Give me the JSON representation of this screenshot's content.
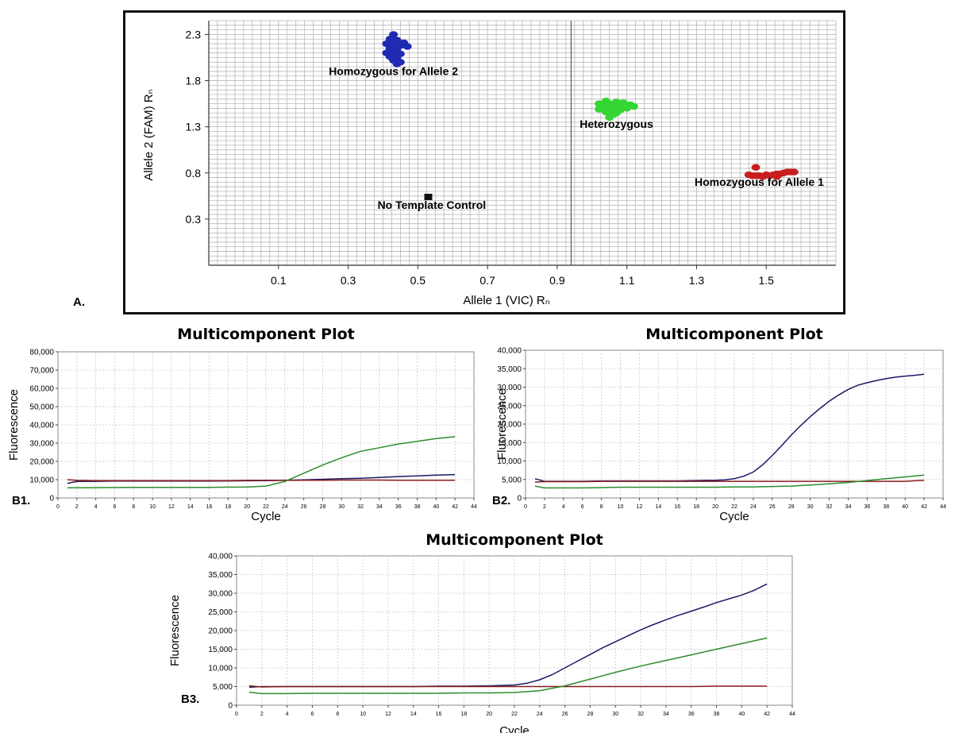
{
  "chart_data": [
    {
      "id": "A",
      "type": "scatter",
      "panel_label": "A.",
      "xlabel": "Allele 1 (VIC) Rₙ",
      "ylabel": "Allele 2 (FAM) Rₙ",
      "xlim": [
        -0.1,
        1.7
      ],
      "ylim": [
        -0.2,
        2.45
      ],
      "xticks": [
        0.1,
        0.3,
        0.5,
        0.7,
        0.9,
        1.1,
        1.3,
        1.5
      ],
      "xtick_labels": [
        "0.1",
        "0.3",
        "0.5",
        "0.7",
        "0.9",
        "1.1",
        "1.3",
        "1.5"
      ],
      "yticks": [
        0.3,
        0.8,
        1.3,
        1.8,
        2.3
      ],
      "ytick_labels": [
        "0.3",
        "0.8",
        "1.3",
        "1.8",
        "2.3"
      ],
      "grid": true,
      "clusters": [
        {
          "label": "Homozygous for Allele 2",
          "color": "#1f2bb3",
          "label_at": [
            0.43,
            1.86
          ],
          "points": [
            [
              0.43,
              2.3
            ],
            [
              0.42,
              2.25
            ],
            [
              0.44,
              2.24
            ],
            [
              0.41,
              2.2
            ],
            [
              0.43,
              2.2
            ],
            [
              0.45,
              2.18
            ],
            [
              0.47,
              2.17
            ],
            [
              0.42,
              2.15
            ],
            [
              0.44,
              2.14
            ],
            [
              0.43,
              2.11
            ],
            [
              0.41,
              2.1
            ],
            [
              0.45,
              2.09
            ],
            [
              0.42,
              2.06
            ],
            [
              0.44,
              2.05
            ],
            [
              0.43,
              2.02
            ],
            [
              0.45,
              2.0
            ],
            [
              0.44,
              1.98
            ],
            [
              0.42,
              2.13
            ],
            [
              0.46,
              2.21
            ],
            [
              0.43,
              2.08
            ]
          ]
        },
        {
          "label": "Heterozygous",
          "color": "#33d633",
          "label_at": [
            1.07,
            1.29
          ],
          "points": [
            [
              1.04,
              1.58
            ],
            [
              1.07,
              1.57
            ],
            [
              1.09,
              1.56
            ],
            [
              1.02,
              1.55
            ],
            [
              1.05,
              1.55
            ],
            [
              1.11,
              1.54
            ],
            [
              1.04,
              1.53
            ],
            [
              1.07,
              1.53
            ],
            [
              1.09,
              1.52
            ],
            [
              1.03,
              1.51
            ],
            [
              1.06,
              1.5
            ],
            [
              1.1,
              1.5
            ],
            [
              1.05,
              1.48
            ],
            [
              1.08,
              1.48
            ],
            [
              1.04,
              1.46
            ],
            [
              1.07,
              1.45
            ],
            [
              1.06,
              1.43
            ],
            [
              1.05,
              1.4
            ],
            [
              1.12,
              1.52
            ],
            [
              1.02,
              1.49
            ]
          ]
        },
        {
          "label": "Homozygous for Allele 1",
          "color": "#c81e1e",
          "label_at": [
            1.48,
            0.66
          ],
          "points": [
            [
              1.47,
              0.86
            ],
            [
              1.45,
              0.78
            ],
            [
              1.47,
              0.77
            ],
            [
              1.48,
              0.77
            ],
            [
              1.5,
              0.78
            ],
            [
              1.51,
              0.77
            ],
            [
              1.52,
              0.78
            ],
            [
              1.53,
              0.79
            ],
            [
              1.54,
              0.79
            ],
            [
              1.55,
              0.8
            ],
            [
              1.56,
              0.81
            ],
            [
              1.57,
              0.81
            ],
            [
              1.58,
              0.81
            ],
            [
              1.49,
              0.76
            ],
            [
              1.46,
              0.77
            ],
            [
              1.53,
              0.76
            ]
          ]
        },
        {
          "label": "No Template Control",
          "color": "#111111",
          "label_at": [
            0.54,
            0.41
          ],
          "points": [
            [
              0.53,
              0.54
            ]
          ]
        }
      ]
    },
    {
      "id": "B1",
      "type": "line",
      "title": "Multicomponent Plot",
      "panel_label": "B1.",
      "xlabel": "Cycle",
      "ylabel": "Fluorescence",
      "xlim": [
        0,
        44
      ],
      "ylim": [
        0,
        80000
      ],
      "xticks": [
        0,
        2,
        4,
        6,
        8,
        10,
        12,
        14,
        16,
        18,
        20,
        22,
        24,
        26,
        28,
        30,
        32,
        34,
        36,
        38,
        40,
        42,
        44
      ],
      "yticks": [
        0,
        10000,
        20000,
        30000,
        40000,
        50000,
        60000,
        70000,
        80000
      ],
      "ytick_labels": [
        "0",
        "10,000",
        "20,000",
        "30,000",
        "40,000",
        "50,000",
        "60,000",
        "70,000",
        "80,000"
      ],
      "grid": true,
      "series": [
        {
          "color": "#1a1a66",
          "x": [
            1,
            2,
            4,
            6,
            8,
            10,
            12,
            14,
            16,
            18,
            20,
            22,
            24,
            26,
            28,
            30,
            32,
            34,
            36,
            38,
            40,
            42
          ],
          "y": [
            8000,
            9000,
            9100,
            9200,
            9200,
            9200,
            9200,
            9200,
            9200,
            9300,
            9400,
            9500,
            9700,
            9900,
            10200,
            10500,
            10800,
            11200,
            11700,
            12100,
            12500,
            12800
          ]
        },
        {
          "color": "#8b1a1a",
          "x": [
            1,
            2,
            4,
            6,
            8,
            10,
            12,
            14,
            16,
            18,
            20,
            22,
            24,
            26,
            28,
            30,
            32,
            34,
            36,
            38,
            40,
            42
          ],
          "y": [
            10000,
            9600,
            9500,
            9500,
            9500,
            9500,
            9500,
            9500,
            9500,
            9500,
            9600,
            9600,
            9600,
            9700,
            9700,
            9800,
            9800,
            9800,
            9700,
            9700,
            9700,
            9700
          ]
        },
        {
          "color": "#2e8b2e",
          "x": [
            1,
            2,
            4,
            6,
            8,
            10,
            12,
            14,
            16,
            18,
            20,
            22,
            24,
            26,
            28,
            30,
            32,
            34,
            36,
            38,
            40,
            42
          ],
          "y": [
            5500,
            5600,
            5600,
            5700,
            5800,
            5800,
            5800,
            5800,
            5800,
            5900,
            6000,
            6500,
            9000,
            13500,
            18000,
            22000,
            25500,
            27500,
            29500,
            31000,
            32500,
            33500
          ]
        }
      ]
    },
    {
      "id": "B2",
      "type": "line",
      "title": "Multicomponent Plot",
      "panel_label": "B2.",
      "xlabel": "Cycle",
      "ylabel": "Fluorescence",
      "xlim": [
        0,
        44
      ],
      "ylim": [
        0,
        40000
      ],
      "xticks": [
        0,
        2,
        4,
        6,
        8,
        10,
        12,
        14,
        16,
        18,
        20,
        22,
        24,
        26,
        28,
        30,
        32,
        34,
        36,
        38,
        40,
        42,
        44
      ],
      "yticks": [
        0,
        5000,
        10000,
        15000,
        20000,
        25000,
        30000,
        35000,
        40000
      ],
      "ytick_labels": [
        "0",
        "5,000",
        "10,000",
        "15,000",
        "20,000",
        "25,000",
        "30,000",
        "35,000",
        "40,000"
      ],
      "grid": true,
      "series": [
        {
          "color": "#1a1a66",
          "x": [
            1,
            2,
            4,
            6,
            8,
            10,
            12,
            14,
            16,
            18,
            20,
            21,
            22,
            23,
            24,
            25,
            26,
            27,
            28,
            29,
            30,
            31,
            32,
            33,
            34,
            35,
            36,
            37,
            38,
            39,
            40,
            41,
            42
          ],
          "y": [
            5200,
            4500,
            4500,
            4500,
            4600,
            4600,
            4600,
            4600,
            4600,
            4700,
            4800,
            4900,
            5200,
            5900,
            7000,
            9000,
            11500,
            14200,
            17000,
            19600,
            22000,
            24200,
            26200,
            27900,
            29400,
            30500,
            31200,
            31800,
            32300,
            32700,
            33000,
            33200,
            33500
          ]
        },
        {
          "color": "#8b1a1a",
          "x": [
            1,
            2,
            4,
            6,
            8,
            10,
            12,
            14,
            16,
            18,
            20,
            22,
            24,
            26,
            28,
            30,
            32,
            34,
            36,
            38,
            40,
            42
          ],
          "y": [
            4300,
            4400,
            4400,
            4400,
            4500,
            4500,
            4500,
            4500,
            4500,
            4500,
            4500,
            4500,
            4500,
            4500,
            4500,
            4500,
            4500,
            4500,
            4500,
            4500,
            4500,
            4800
          ]
        },
        {
          "color": "#2e8b2e",
          "x": [
            1,
            2,
            4,
            6,
            8,
            10,
            12,
            14,
            16,
            18,
            20,
            22,
            24,
            26,
            28,
            30,
            32,
            34,
            36,
            38,
            40,
            42
          ],
          "y": [
            3200,
            2700,
            2700,
            2700,
            2800,
            2900,
            2900,
            2900,
            2900,
            2900,
            2900,
            3000,
            3000,
            3100,
            3200,
            3500,
            3800,
            4200,
            4700,
            5200,
            5700,
            6200
          ]
        }
      ]
    },
    {
      "id": "B3",
      "type": "line",
      "title": "Multicomponent Plot",
      "panel_label": "B3.",
      "xlabel": "Cycle",
      "ylabel": "Fluorescence",
      "xlim": [
        0,
        44
      ],
      "ylim": [
        0,
        40000
      ],
      "xticks": [
        0,
        2,
        4,
        6,
        8,
        10,
        12,
        14,
        16,
        18,
        20,
        22,
        24,
        26,
        28,
        30,
        32,
        34,
        36,
        38,
        40,
        42,
        44
      ],
      "yticks": [
        0,
        5000,
        10000,
        15000,
        20000,
        25000,
        30000,
        35000,
        40000
      ],
      "ytick_labels": [
        "0",
        "5,000",
        "10,000",
        "15,000",
        "20,000",
        "25,000",
        "30,000",
        "35,000",
        "40,000"
      ],
      "grid": true,
      "series": [
        {
          "color": "#1a1a66",
          "x": [
            1,
            2,
            4,
            6,
            8,
            10,
            12,
            14,
            16,
            18,
            20,
            22,
            23,
            24,
            25,
            26,
            27,
            28,
            29,
            30,
            31,
            32,
            33,
            34,
            35,
            36,
            37,
            38,
            39,
            40,
            41,
            42
          ],
          "y": [
            4800,
            5000,
            5000,
            5000,
            5000,
            5000,
            5000,
            5000,
            5100,
            5100,
            5200,
            5400,
            5900,
            6800,
            8200,
            10000,
            11800,
            13600,
            15400,
            17000,
            18600,
            20200,
            21600,
            22900,
            24100,
            25200,
            26300,
            27500,
            28500,
            29500,
            30800,
            32500
          ]
        },
        {
          "color": "#8b1a1a",
          "x": [
            1,
            2,
            4,
            6,
            8,
            10,
            12,
            14,
            16,
            18,
            20,
            22,
            24,
            26,
            28,
            30,
            32,
            34,
            36,
            38,
            40,
            42
          ],
          "y": [
            5200,
            4900,
            5000,
            5000,
            5000,
            5000,
            5000,
            5000,
            5000,
            5000,
            5000,
            5000,
            5000,
            5000,
            5000,
            5000,
            5000,
            5000,
            5000,
            5100,
            5100,
            5100
          ]
        },
        {
          "color": "#2e8b2e",
          "x": [
            1,
            2,
            4,
            6,
            8,
            10,
            12,
            14,
            16,
            18,
            20,
            22,
            24,
            26,
            28,
            30,
            32,
            34,
            36,
            38,
            40,
            42
          ],
          "y": [
            3500,
            3100,
            3100,
            3200,
            3200,
            3200,
            3200,
            3200,
            3200,
            3300,
            3300,
            3400,
            3900,
            5200,
            7000,
            8800,
            10500,
            12000,
            13500,
            15000,
            16500,
            18000
          ]
        }
      ]
    }
  ]
}
